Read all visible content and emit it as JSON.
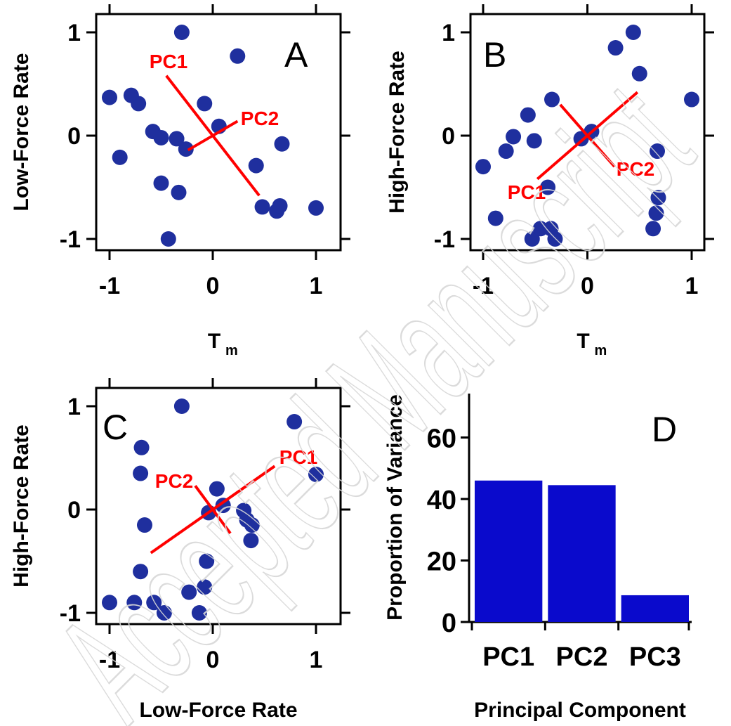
{
  "watermark": "Accepted Manuscript",
  "colors": {
    "point": "#1f2f9e",
    "pc_line": "#ff0000",
    "bar": "#0a0acc",
    "axis": "#000000"
  },
  "chart_data": [
    {
      "panel": "A",
      "type": "scatter",
      "xlabel": "T",
      "xlabel_sub": "m",
      "ylabel": "Low-Force Rate",
      "xlim": [
        -1.1,
        1.1
      ],
      "ylim": [
        -1.1,
        1.1
      ],
      "xticks": [
        "-1",
        "0",
        "1"
      ],
      "yticks": [
        "-1",
        "0",
        "1"
      ],
      "points": [
        [
          -1.0,
          0.37
        ],
        [
          -0.9,
          -0.21
        ],
        [
          -0.79,
          0.39
        ],
        [
          -0.72,
          0.31
        ],
        [
          -0.58,
          0.04
        ],
        [
          -0.5,
          -0.02
        ],
        [
          -0.5,
          -0.46
        ],
        [
          -0.43,
          -1.0
        ],
        [
          -0.35,
          -0.03
        ],
        [
          -0.33,
          -0.55
        ],
        [
          -0.3,
          1.0
        ],
        [
          -0.26,
          -0.13
        ],
        [
          -0.08,
          0.31
        ],
        [
          0.06,
          0.09
        ],
        [
          0.24,
          0.77
        ],
        [
          0.42,
          -0.29
        ],
        [
          0.48,
          -0.69
        ],
        [
          0.62,
          -0.73
        ],
        [
          0.65,
          -0.68
        ],
        [
          0.67,
          -0.08
        ],
        [
          1.0,
          -0.7
        ]
      ],
      "pc_lines": [
        {
          "label": "PC1",
          "from": [
            -0.45,
            0.58
          ],
          "to": [
            0.45,
            -0.58
          ]
        },
        {
          "label": "PC2",
          "from": [
            -0.24,
            -0.14
          ],
          "to": [
            0.24,
            0.14
          ]
        }
      ]
    },
    {
      "panel": "B",
      "type": "scatter",
      "xlabel": "T",
      "xlabel_sub": "m",
      "ylabel": "High-Force Rate",
      "xlim": [
        -1.1,
        1.1
      ],
      "ylim": [
        -1.1,
        1.1
      ],
      "xticks": [
        "-1",
        "0",
        "1"
      ],
      "yticks": [
        "-1",
        "0",
        "1"
      ],
      "points": [
        [
          -1.0,
          -0.3
        ],
        [
          -0.88,
          -0.8
        ],
        [
          -0.78,
          -0.15
        ],
        [
          -0.71,
          -0.01
        ],
        [
          -0.57,
          0.2
        ],
        [
          -0.51,
          -0.05
        ],
        [
          -0.53,
          -1.0
        ],
        [
          -0.45,
          -0.9
        ],
        [
          -0.38,
          -0.5
        ],
        [
          -0.35,
          -0.9
        ],
        [
          -0.31,
          -1.0
        ],
        [
          -0.34,
          0.35
        ],
        [
          -0.06,
          -0.03
        ],
        [
          0.04,
          0.04
        ],
        [
          0.27,
          0.85
        ],
        [
          0.44,
          1.0
        ],
        [
          0.5,
          0.6
        ],
        [
          0.63,
          -0.9
        ],
        [
          0.66,
          -0.75
        ],
        [
          0.67,
          -0.15
        ],
        [
          0.68,
          -0.6
        ],
        [
          1.0,
          0.35
        ]
      ],
      "pc_lines": [
        {
          "label": "PC1",
          "from": [
            -0.48,
            -0.42
          ],
          "to": [
            0.48,
            0.42
          ]
        },
        {
          "label": "PC2",
          "from": [
            -0.26,
            0.3
          ],
          "to": [
            0.26,
            -0.3
          ]
        }
      ]
    },
    {
      "panel": "C",
      "type": "scatter",
      "xlabel": "Low-Force Rate",
      "ylabel": "High-Force Rate",
      "xlim": [
        -1.1,
        1.1
      ],
      "ylim": [
        -1.1,
        1.1
      ],
      "xticks": [
        "-1",
        "0",
        "1"
      ],
      "yticks": [
        "-1",
        "0",
        "1"
      ],
      "points": [
        [
          -1.0,
          -0.9
        ],
        [
          -0.76,
          -0.9
        ],
        [
          -0.7,
          -0.6
        ],
        [
          -0.7,
          0.35
        ],
        [
          -0.69,
          0.6
        ],
        [
          -0.66,
          -0.15
        ],
        [
          -0.57,
          -0.9
        ],
        [
          -0.47,
          -1.0
        ],
        [
          -0.3,
          1.0
        ],
        [
          -0.23,
          -0.8
        ],
        [
          -0.13,
          -1.0
        ],
        [
          -0.08,
          -0.75
        ],
        [
          -0.06,
          -0.5
        ],
        [
          -0.04,
          -0.03
        ],
        [
          0.04,
          0.2
        ],
        [
          0.1,
          0.04
        ],
        [
          0.3,
          -0.01
        ],
        [
          0.33,
          -0.1
        ],
        [
          0.38,
          -0.15
        ],
        [
          0.37,
          -0.3
        ],
        [
          0.79,
          0.85
        ],
        [
          1.0,
          0.34
        ]
      ],
      "pc_lines": [
        {
          "label": "PC1",
          "from": [
            -0.6,
            -0.42
          ],
          "to": [
            0.6,
            0.42
          ]
        },
        {
          "label": "PC2",
          "from": [
            -0.17,
            0.23
          ],
          "to": [
            0.17,
            -0.23
          ]
        }
      ]
    },
    {
      "panel": "D",
      "type": "bar",
      "xlabel": "Principal Component",
      "ylabel": "Proportion of Variance",
      "categories": [
        "PC1",
        "PC2",
        "PC3"
      ],
      "values": [
        46,
        44.5,
        8.7
      ],
      "ylim": [
        0,
        72
      ],
      "yticks": [
        0,
        20,
        40,
        60
      ]
    }
  ]
}
